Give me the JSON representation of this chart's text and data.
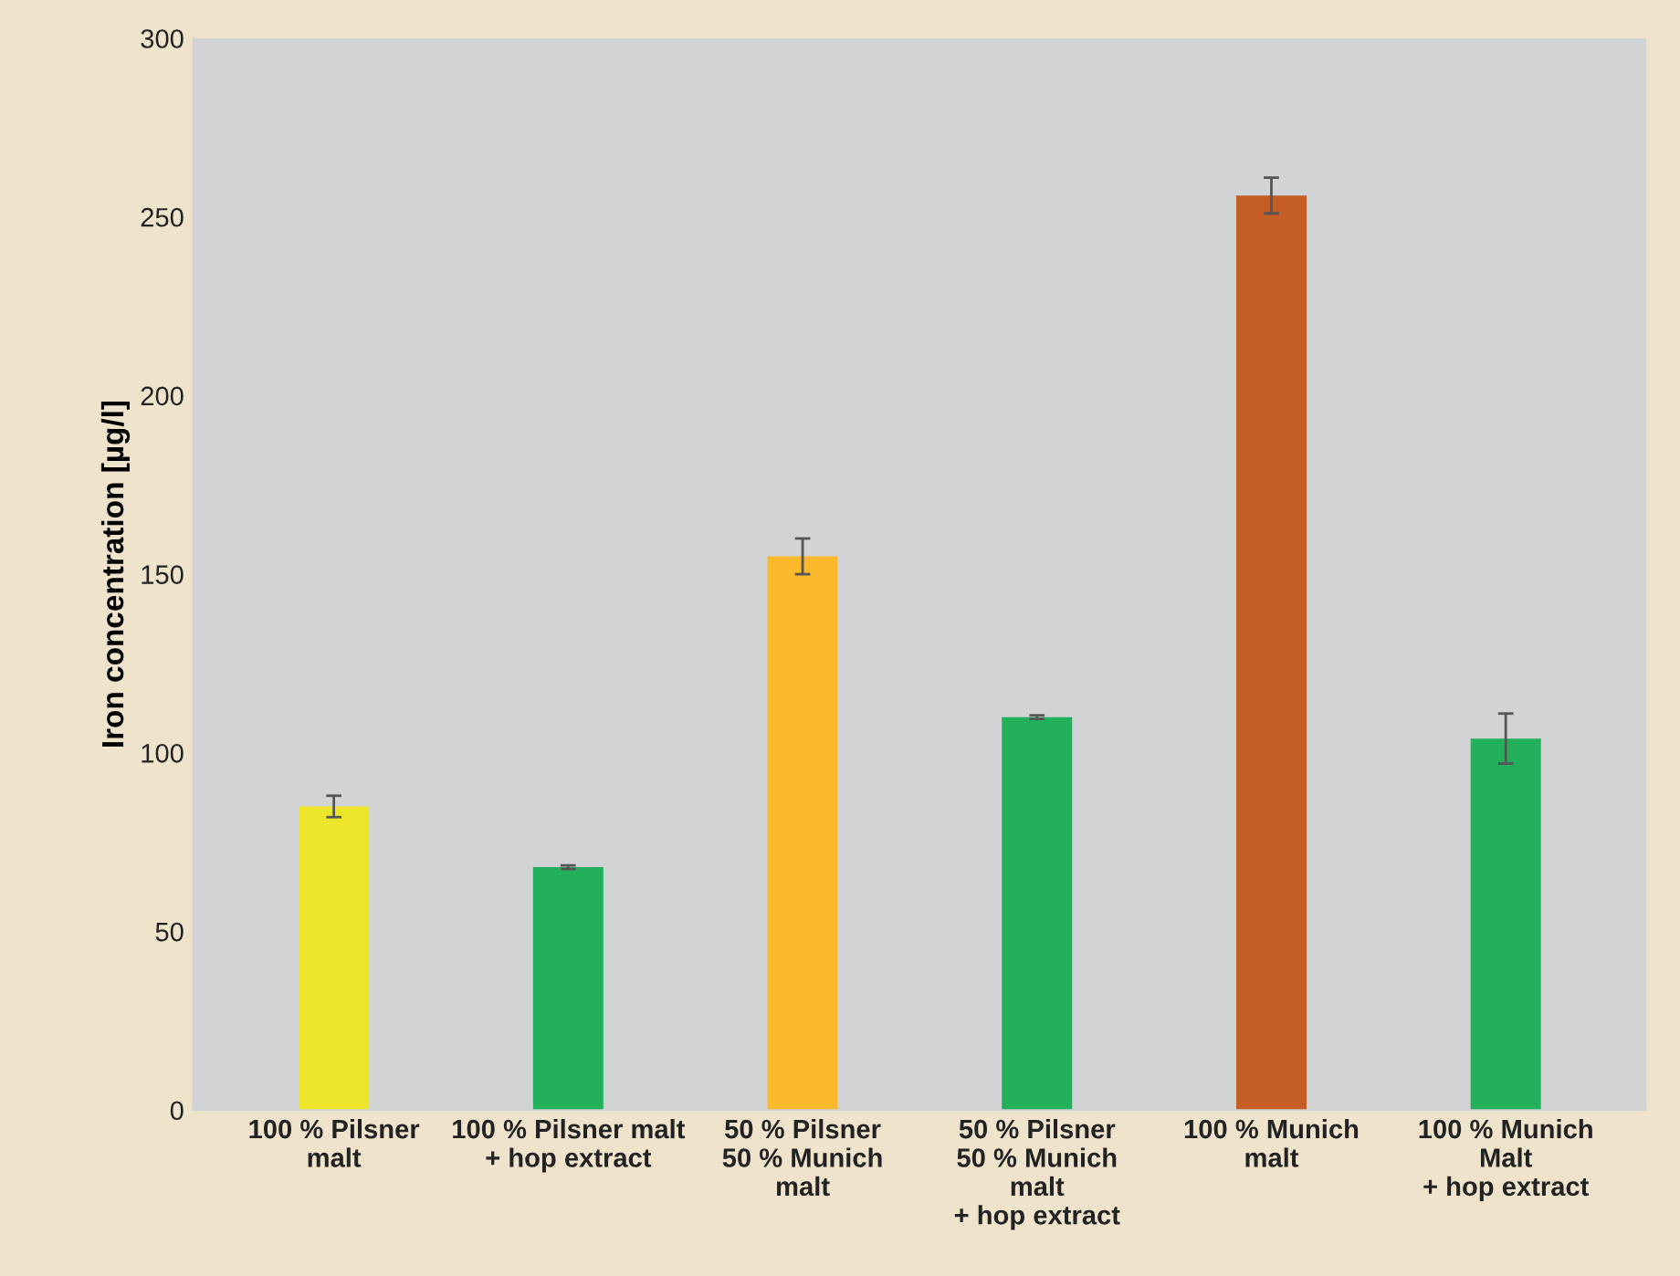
{
  "chart_data": {
    "type": "bar",
    "ylabel": "Iron concentration [µg/l]",
    "categories": [
      "100 % Pilsner\nmalt",
      "100 % Pilsner malt\n+ hop extract",
      "50 % Pilsner\n50 % Munich\nmalt",
      "50 % Pilsner\n50 % Munich\nmalt\n+ hop extract",
      "100 % Munich\nmalt",
      "100 % Munich\nMalt\n+ hop extract"
    ],
    "values": [
      85,
      68,
      155,
      110,
      256,
      104
    ],
    "errors": [
      3,
      0.5,
      5,
      0.5,
      5,
      7
    ],
    "colors": [
      "#ede52a",
      "#22b15a",
      "#fbb92b",
      "#22b15a",
      "#c45d26",
      "#22b15a"
    ],
    "ylim": [
      0,
      300
    ],
    "yticks": [
      0,
      50,
      100,
      150,
      200,
      250,
      300
    ],
    "grid": false
  }
}
